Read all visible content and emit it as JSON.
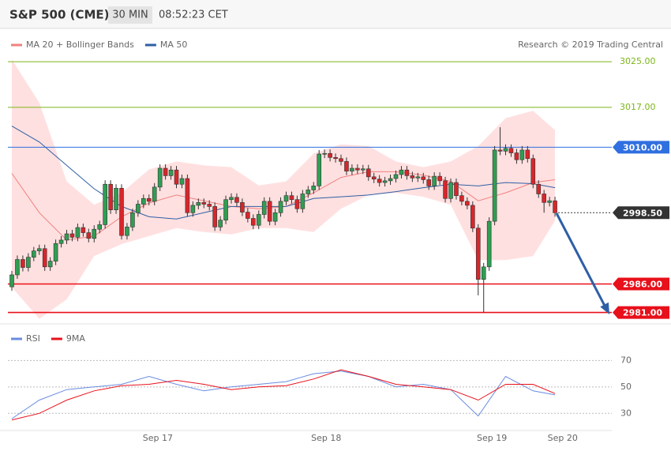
{
  "header": {
    "symbol": "S&P 500 (CME)",
    "interval": "30 MIN",
    "time": "08:52:23 CET"
  },
  "chart_data": [
    {
      "type": "candlestick",
      "copyright": "Research © 2019 Trading Central",
      "xlim": [
        -0.72,
        109.35
      ],
      "ylim": [
        2979,
        3026.4
      ],
      "up_color": "#2f9e52",
      "down_color": "#d7262b",
      "x": [
        0,
        1,
        2,
        3,
        4,
        5,
        6,
        7,
        8,
        9,
        10,
        11,
        12,
        13,
        14,
        15,
        16,
        17,
        18,
        19,
        20,
        21,
        22,
        23,
        24,
        25,
        26,
        27,
        28,
        29,
        30,
        31,
        32,
        33,
        34,
        35,
        36,
        37,
        38,
        39,
        40,
        41,
        42,
        43,
        44,
        45,
        46,
        47,
        48,
        49,
        50,
        51,
        52,
        53,
        54,
        55,
        56,
        57,
        58,
        59,
        60,
        61,
        62,
        63,
        64,
        65,
        66,
        67,
        68,
        69,
        70,
        71,
        72,
        73,
        74,
        75,
        76,
        77,
        78,
        79,
        80,
        81,
        82,
        83,
        84,
        85,
        86,
        87,
        88,
        89,
        90,
        91,
        92,
        93,
        94,
        95,
        96,
        97,
        98,
        99
      ],
      "open": [
        2985.5,
        2987.6,
        2990.3,
        2988.9,
        2990.7,
        2991.8,
        2992.2,
        2989.0,
        2990.0,
        2993.1,
        2993.7,
        2994.8,
        2994.2,
        2995.9,
        2995.0,
        2994.0,
        2995.6,
        2996.4,
        3003.5,
        2999.0,
        3002.8,
        2994.5,
        2996.0,
        2998.5,
        3000.0,
        3001.0,
        3000.5,
        3003.0,
        3006.3,
        3005.0,
        3006.0,
        3003.5,
        3004.5,
        2998.5,
        2999.8,
        3000.3,
        3000.0,
        2999.6,
        2996.0,
        2997.2,
        3000.8,
        3001.2,
        3000.3,
        2998.6,
        2997.5,
        2996.3,
        2998.2,
        3000.5,
        2997.0,
        2998.5,
        3000.5,
        3001.5,
        3000.8,
        2999.2,
        3001.8,
        3002.5,
        3003.2,
        3008.8,
        3008.9,
        3008.2,
        3008.0,
        3007.5,
        3005.8,
        3006.3,
        3006.0,
        3006.2,
        3004.8,
        3004.4,
        3003.8,
        3004.1,
        3004.5,
        3005.2,
        3006.0,
        3005.0,
        3004.6,
        3004.8,
        3004.3,
        3003.2,
        3004.9,
        3004.1,
        3001.0,
        3003.8,
        3001.5,
        3000.5,
        2999.8,
        2995.8,
        2986.8,
        2989.0,
        2997.0,
        3009.5,
        3009.3,
        3009.8,
        3009.0,
        3007.8,
        3009.5,
        3008.0,
        3003.5,
        3001.8,
        3000.3,
        3000.6
      ],
      "high": [
        2988.3,
        2991.0,
        2991.0,
        2991.4,
        2992.5,
        2992.9,
        2992.9,
        2990.7,
        2993.8,
        2994.4,
        2995.5,
        2995.5,
        2996.6,
        2996.6,
        2995.7,
        2996.3,
        2997.1,
        3004.2,
        3004.2,
        3003.5,
        3003.5,
        2996.7,
        2999.2,
        3000.7,
        3001.7,
        3001.7,
        3003.7,
        3007.0,
        3007.0,
        3006.7,
        3006.7,
        3005.2,
        3005.2,
        3000.5,
        3001.0,
        3001.0,
        3000.7,
        3000.3,
        2997.9,
        3001.5,
        3001.9,
        3001.9,
        3001.0,
        2999.3,
        2998.2,
        2998.9,
        3001.2,
        3001.2,
        2999.2,
        3001.2,
        3002.2,
        3002.2,
        3001.5,
        3002.5,
        3003.2,
        3003.9,
        3009.5,
        3009.6,
        3009.6,
        3008.9,
        3008.7,
        3008.2,
        3007.0,
        3007.0,
        3006.9,
        3006.9,
        3005.5,
        3005.1,
        3004.8,
        3005.2,
        3005.9,
        3006.7,
        3006.7,
        3005.7,
        3005.5,
        3005.5,
        3005.0,
        3005.6,
        3005.6,
        3004.8,
        3004.5,
        3004.5,
        3002.2,
        3001.2,
        3000.5,
        2996.5,
        2989.7,
        2997.7,
        3010.2,
        3013.5,
        3010.5,
        3010.5,
        3009.7,
        3010.2,
        3010.2,
        3008.7,
        3004.2,
        3002.5,
        3001.3,
        3001.3
      ],
      "low": [
        2984.8,
        2986.9,
        2988.2,
        2988.2,
        2990.0,
        2991.1,
        2988.3,
        2988.3,
        2989.3,
        2992.4,
        2993.0,
        2993.5,
        2993.5,
        2994.3,
        2993.3,
        2993.3,
        2994.9,
        2995.7,
        2998.3,
        2998.3,
        2993.8,
        2993.8,
        2995.3,
        2997.8,
        2999.3,
        2999.8,
        2999.8,
        3002.3,
        3004.3,
        3004.3,
        3002.8,
        3002.8,
        2997.8,
        2997.8,
        2999.1,
        2999.3,
        2998.9,
        2995.3,
        2995.3,
        2996.5,
        3000.1,
        2999.6,
        2997.9,
        2996.8,
        2995.6,
        2995.6,
        2997.5,
        2996.3,
        2996.3,
        2997.8,
        2999.8,
        3000.1,
        2998.5,
        2998.5,
        3001.1,
        3001.8,
        3002.5,
        3008.1,
        3007.5,
        3007.3,
        3006.8,
        3005.1,
        3005.1,
        3005.3,
        3005.3,
        3004.1,
        3003.7,
        3003.1,
        3003.1,
        3003.4,
        3003.8,
        3004.5,
        3004.3,
        3003.9,
        3003.9,
        3003.6,
        3002.5,
        3002.5,
        3003.4,
        3000.3,
        3000.3,
        3000.8,
        2999.8,
        2999.1,
        2995.1,
        2984.0,
        2981.0,
        2988.3,
        2996.3,
        3008.6,
        3008.6,
        3008.3,
        3007.1,
        3007.1,
        3007.3,
        3002.8,
        3001.1,
        2998.5,
        2999.6,
        2997.8
      ],
      "close": [
        2987.6,
        2990.3,
        2988.9,
        2990.7,
        2991.8,
        2992.2,
        2989.0,
        2990.0,
        2993.1,
        2993.7,
        2994.8,
        2994.2,
        2995.9,
        2995.0,
        2994.0,
        2995.6,
        2996.4,
        3003.5,
        2999.0,
        3002.8,
        2994.5,
        2996.0,
        2998.5,
        3000.0,
        3001.0,
        3000.5,
        3003.0,
        3006.3,
        3005.0,
        3006.0,
        3003.5,
        3004.5,
        2998.5,
        2999.8,
        3000.3,
        3000.0,
        2999.6,
        2996.0,
        2997.2,
        3000.8,
        3001.2,
        3000.3,
        2998.6,
        2997.5,
        2996.3,
        2998.2,
        3000.5,
        2997.0,
        2998.5,
        3000.5,
        3001.5,
        3000.8,
        2999.2,
        3001.8,
        3002.5,
        3003.2,
        3008.8,
        3008.9,
        3008.2,
        3008.0,
        3007.5,
        3005.8,
        3006.3,
        3006.0,
        3006.2,
        3004.8,
        3004.4,
        3003.8,
        3004.1,
        3004.5,
        3005.2,
        3006.0,
        3005.0,
        3004.6,
        3004.8,
        3004.3,
        3003.2,
        3004.9,
        3004.1,
        3001.0,
        3003.8,
        3001.5,
        3000.5,
        2999.8,
        2995.8,
        2986.8,
        2989.0,
        2997.0,
        3009.5,
        3009.3,
        3009.8,
        3009.0,
        3007.8,
        3009.5,
        3008.0,
        3003.5,
        3001.8,
        3000.3,
        3000.6,
        2998.5
      ],
      "series": [
        {
          "name": "MA 20 + Bollinger Bands",
          "color": "#f08080",
          "band_color": "#ffd6d6",
          "x": [
            0,
            5,
            10,
            15,
            20,
            25,
            30,
            35,
            40,
            45,
            50,
            55,
            60,
            65,
            70,
            75,
            80,
            85,
            90,
            95,
            99
          ],
          "values": [
            3005.4,
            2998.5,
            2993.7,
            2994.4,
            2997.8,
            3000.2,
            3001.6,
            3000.6,
            2999.6,
            2999.2,
            2999.6,
            3002.0,
            3004.7,
            3005.7,
            3005.7,
            3005.1,
            3004.0,
            3000.6,
            3002.0,
            3003.8,
            3004.3
          ],
          "upper": [
            3025.4,
            3017.8,
            3004.0,
            2999.9,
            3002.0,
            3006.1,
            3007.5,
            3006.8,
            3006.5,
            3003.3,
            3004.0,
            3008.9,
            3010.5,
            3010.2,
            3007.5,
            3006.5,
            3007.5,
            3010.2,
            3015.1,
            3016.4,
            3013.0
          ],
          "lower": [
            2985.4,
            2979.9,
            2983.3,
            2990.9,
            2993.0,
            2994.4,
            2995.8,
            2995.1,
            2994.7,
            2995.8,
            2995.8,
            2995.1,
            2999.2,
            3001.6,
            3002.0,
            3001.3,
            2999.9,
            2990.2,
            2990.2,
            2990.9,
            2997.1
          ]
        },
        {
          "name": "MA 50",
          "color": "#2e5fa5",
          "x": [
            0,
            5,
            10,
            15,
            20,
            25,
            30,
            35,
            40,
            45,
            50,
            55,
            60,
            65,
            70,
            75,
            80,
            85,
            90,
            95,
            99
          ],
          "values": [
            3013.7,
            3010.9,
            3006.8,
            3002.7,
            2999.6,
            2997.8,
            2997.4,
            2998.5,
            2999.6,
            2999.6,
            2999.6,
            3001.0,
            3001.3,
            3001.6,
            3002.2,
            3002.9,
            3003.5,
            3003.2,
            3003.8,
            3003.6,
            3002.9
          ]
        }
      ],
      "levels": [
        {
          "value": 3025,
          "label": "3025.00",
          "color": "#7cb518",
          "style": "solid",
          "badge": false
        },
        {
          "value": 3017,
          "label": "3017.00",
          "color": "#7cb518",
          "style": "solid",
          "badge": false
        },
        {
          "value": 3010,
          "label": "3010.00",
          "color": "#2f6fe0",
          "style": "solid",
          "badge": true
        },
        {
          "value": 2998.5,
          "label": "2998.50",
          "color": "#333333",
          "style": "dotted",
          "badge": true
        },
        {
          "value": 2986,
          "label": "2986.00",
          "color": "#e8101a",
          "style": "solid",
          "badge": true
        },
        {
          "value": 2981,
          "label": "2981.00",
          "color": "#e8101a",
          "style": "solid",
          "badge": true
        }
      ]
    },
    {
      "type": "line",
      "xlim": [
        -0.72,
        109.35
      ],
      "ylim": [
        17,
        81
      ],
      "yticks": [
        30,
        50,
        70
      ],
      "grid": true,
      "xticks": [
        {
          "value": 26.6,
          "label": "Sep 17"
        },
        {
          "value": 57.3,
          "label": "Sep 18"
        },
        {
          "value": 87.5,
          "label": "Sep 19"
        },
        {
          "value": 100.4,
          "label": "Sep 20"
        }
      ],
      "x": [
        0,
        5,
        10,
        15,
        20,
        25,
        30,
        35,
        40,
        45,
        50,
        55,
        60,
        65,
        70,
        75,
        80,
        85,
        90,
        95,
        99
      ],
      "series": [
        {
          "name": "RSI",
          "color": "#6a8be0",
          "values": [
            26,
            40,
            48,
            50,
            52,
            58,
            52,
            47,
            50,
            52,
            54,
            60,
            62,
            58,
            50,
            52,
            48,
            28,
            58,
            47,
            44
          ]
        },
        {
          "name": "9MA",
          "color": "#e8101a",
          "values": [
            25,
            30,
            40,
            47,
            51,
            52,
            55,
            52,
            48,
            50,
            51,
            56,
            63,
            58,
            52,
            50,
            48,
            40,
            52,
            52,
            45
          ]
        }
      ]
    }
  ]
}
